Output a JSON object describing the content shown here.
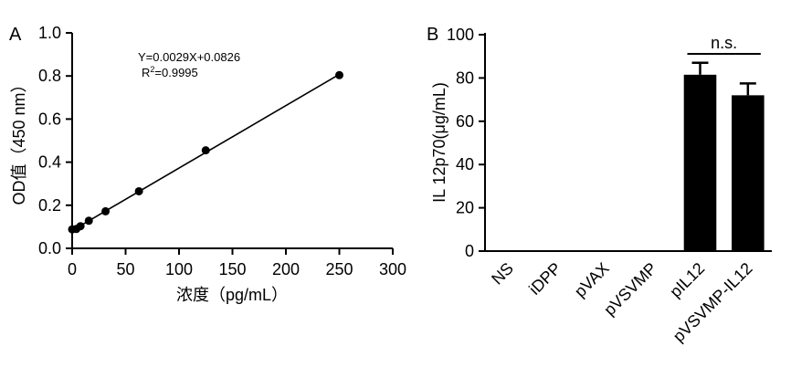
{
  "chart_data": [
    {
      "panel": "A",
      "type": "scatter",
      "title": "",
      "xlabel": "浓度（pg/mL）",
      "ylabel": "OD值（450 nm）",
      "xlim": [
        0,
        300
      ],
      "ylim": [
        0,
        1.0
      ],
      "xticks": [
        0,
        50,
        100,
        150,
        200,
        250,
        300
      ],
      "yticks": [
        0.0,
        0.2,
        0.4,
        0.6,
        0.8,
        1.0
      ],
      "xtick_labels": [
        "0",
        "50",
        "100",
        "150",
        "200",
        "250",
        "300"
      ],
      "ytick_labels": [
        "0.0",
        "0.2",
        "0.4",
        "0.6",
        "0.8",
        "1.0"
      ],
      "points": {
        "x": [
          0,
          3.9,
          7.8,
          15.6,
          31.25,
          62.5,
          125,
          250
        ],
        "y": [
          0.088,
          0.09,
          0.103,
          0.128,
          0.172,
          0.265,
          0.455,
          0.804
        ]
      },
      "fit_line": {
        "slope": 0.0029,
        "intercept": 0.0826,
        "x_range": [
          0,
          250
        ]
      },
      "annotations": {
        "equation": "Y=0.0029X+0.0826",
        "r2_prefix": "R",
        "r2_sup": "2",
        "r2_value": "=0.9995"
      },
      "grid": false,
      "legend": "none"
    },
    {
      "panel": "B",
      "type": "bar",
      "title": "",
      "xlabel": "",
      "ylabel": "IL 12p70(μg/mL)",
      "ylim": [
        0,
        100
      ],
      "yticks": [
        0,
        20,
        40,
        60,
        80,
        100
      ],
      "ytick_labels": [
        "0",
        "20",
        "40",
        "60",
        "80",
        "100"
      ],
      "categories": [
        "NS",
        "iDPP",
        "pVAX",
        "pVSVMP",
        "pIL12",
        "pVSVMP-IL12"
      ],
      "values": [
        0,
        0,
        0,
        0,
        81.5,
        72
      ],
      "errors": [
        0,
        0,
        0,
        0,
        5.5,
        5.5
      ],
      "significance": {
        "between": [
          4,
          5
        ],
        "label": "n.s."
      },
      "bar_color": "#000000",
      "grid": false,
      "legend": "none"
    }
  ]
}
